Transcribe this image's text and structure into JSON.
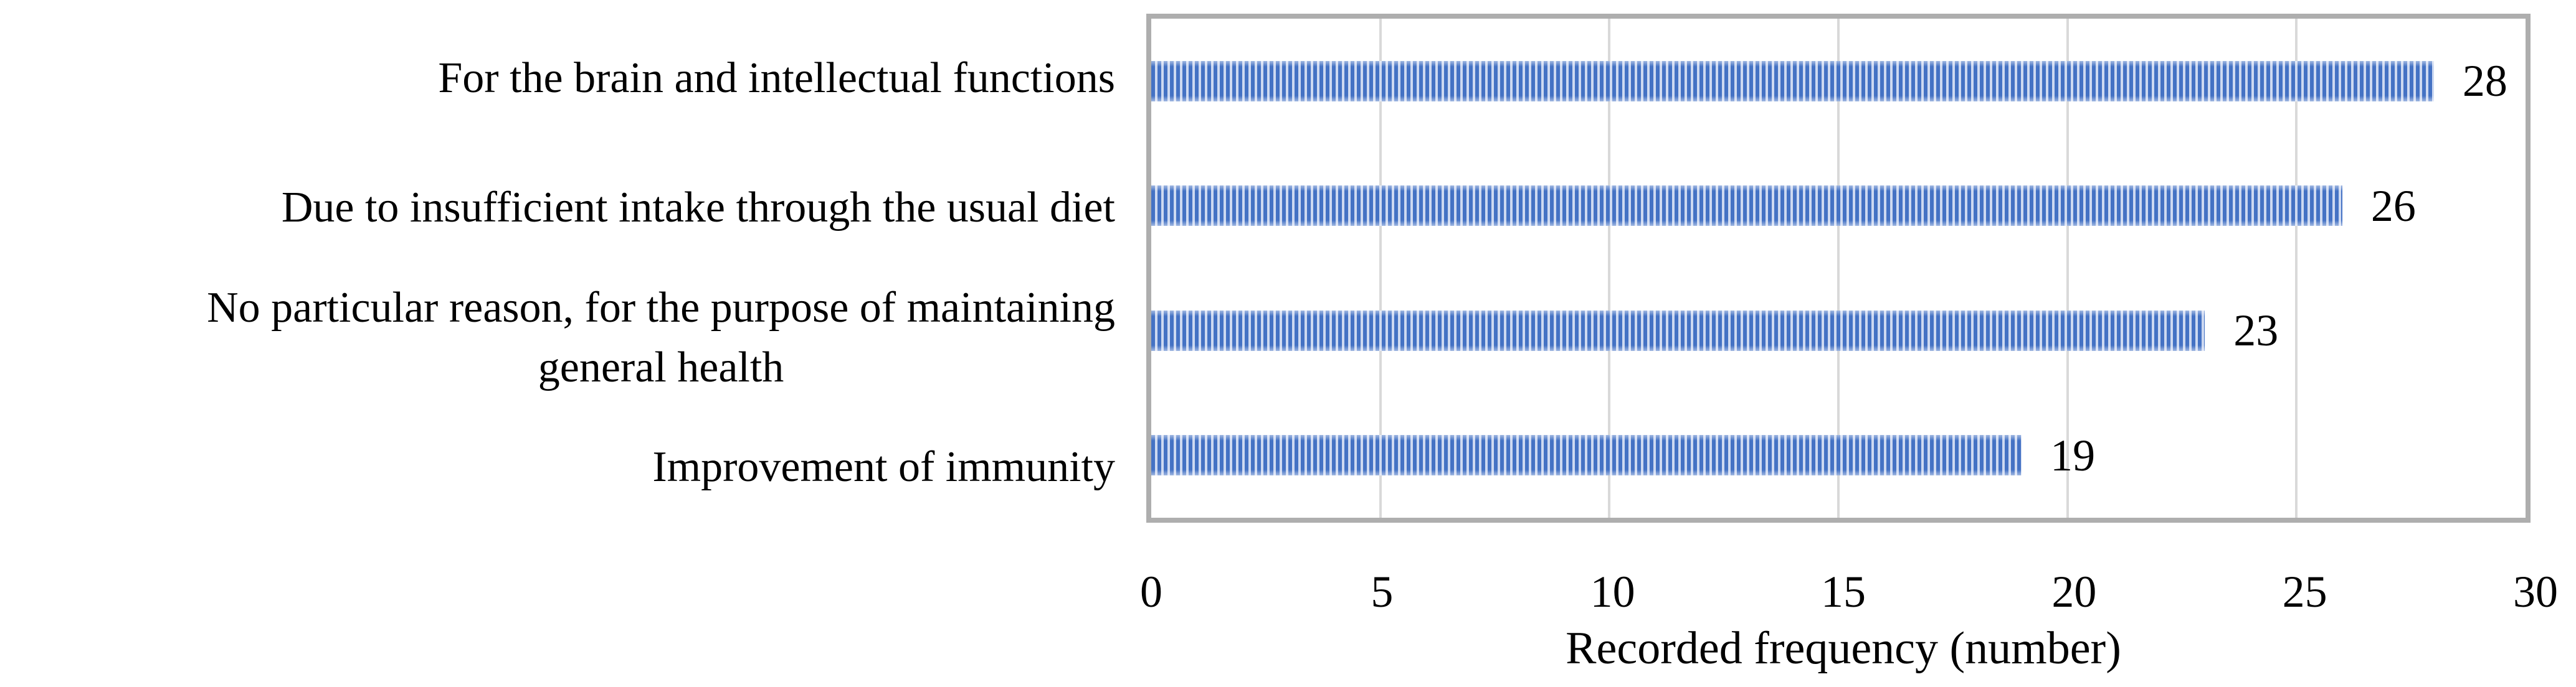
{
  "figure": {
    "background": "#ffffff",
    "description": "Horizontal striped bar chart of reasons for supplement use"
  },
  "chart_data": {
    "type": "bar",
    "orientation": "horizontal",
    "title": "",
    "categories": [
      "For the brain and intellectual functions",
      "Due to insufficient intake through the usual diet",
      "No particular reason, for the purpose of maintaining\ngeneral health",
      "Improvement of immunity"
    ],
    "values": [
      28,
      26,
      23,
      19
    ],
    "data_labels": [
      "28",
      "26",
      "23",
      "19"
    ],
    "xlabel": "Recorded frequency (number)",
    "xticks": [
      "0",
      "5",
      "10",
      "15",
      "20",
      "25",
      "30"
    ],
    "xlim": [
      0,
      30
    ],
    "grid": "vertical gridlines every 5 units",
    "legend": "none",
    "colors": {
      "bar": "#4472C4",
      "bar_stripe": "#CDD9F1",
      "plot_border": "#AEAEAE",
      "gridline": "#D9D9D9",
      "text": "#000000"
    }
  }
}
